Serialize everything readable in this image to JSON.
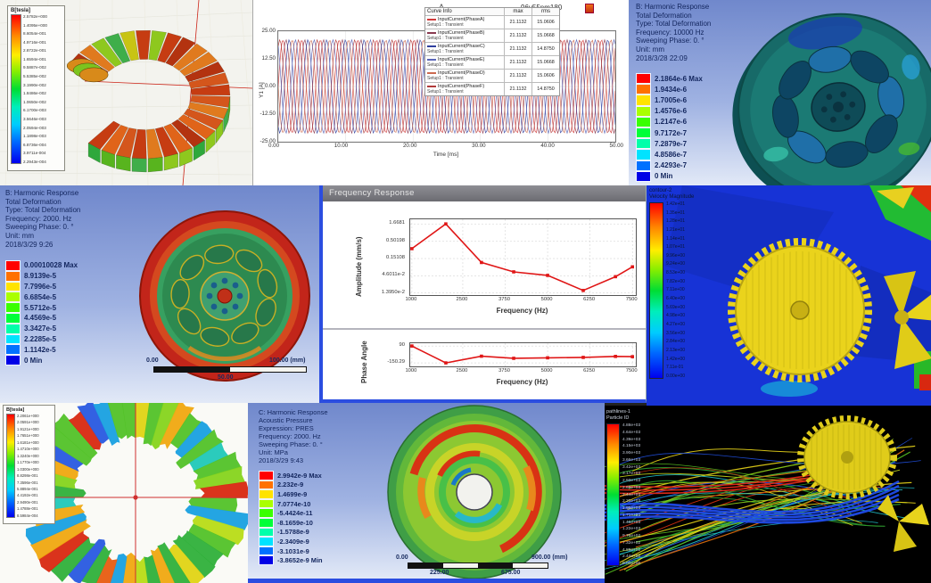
{
  "panels": {
    "maxwell_top": {
      "legend_title": "B[tesla]",
      "legend_values": [
        "2.5782e+000",
        "1.4095e+000",
        "8.6054e-001",
        "4.9716e-001",
        "2.8722e-001",
        "1.6594e-001",
        "9.5887e-002",
        "5.5385e-002",
        "3.1990e-002",
        "1.8486e-002",
        "1.0650e-002",
        "6.1700e-003",
        "3.5646e-003",
        "2.0594e-003",
        "1.1898e-003",
        "6.8736e-004",
        "3.9711e-004",
        "2.2943e-004"
      ]
    },
    "xy_plot": {
      "title": "A",
      "subtitle": "96v55nm180",
      "ylabel": "Y1 [A]",
      "xlabel": "Time [ms]",
      "yticks": [
        "25.00",
        "12.50",
        "0.00",
        "-12.50",
        "-25.00"
      ],
      "xticks": [
        "0.00",
        "10.00",
        "20.00",
        "30.00",
        "40.00",
        "50.00"
      ],
      "table": {
        "headers": [
          "Curve Info",
          "max",
          "rms"
        ],
        "rows": [
          {
            "label": "InputCurrent(PhaseA)",
            "setup": "Setup1 : Transient",
            "max": "21.1132",
            "rms": "15.0606",
            "color": "#d03a3a"
          },
          {
            "label": "InputCurrent(PhaseB)",
            "setup": "Setup1 : Transient",
            "max": "21.1132",
            "rms": "15.0668",
            "color": "#8a3a50"
          },
          {
            "label": "InputCurrent(PhaseC)",
            "setup": "Setup1 : Transient",
            "max": "21.1132",
            "rms": "14.8750",
            "color": "#2f3f9e"
          },
          {
            "label": "InputCurrent(PhaseE)",
            "setup": "Setup1 : Transient",
            "max": "21.1132",
            "rms": "15.0668",
            "color": "#5a66b8"
          },
          {
            "label": "InputCurrent(PhaseD)",
            "setup": "Setup1 : Transient",
            "max": "21.1132",
            "rms": "15.0606",
            "color": "#cc6a50"
          },
          {
            "label": "InputCurrent(PhaseF)",
            "setup": "Setup1 : Transient",
            "max": "21.1132",
            "rms": "14.8750",
            "color": "#b03a3a"
          }
        ]
      }
    },
    "harmonic_10000": {
      "info_lines": [
        "B: Harmonic Response",
        "Total Deformation",
        "Type: Total Deformation",
        "Frequency: 10000 Hz",
        "Sweeping Phase: 0. °",
        "Unit: mm",
        "2018/3/28 22:09"
      ],
      "legend": [
        "2.1864e-6 Max",
        "1.9434e-6",
        "1.7005e-6",
        "1.4576e-6",
        "1.2147e-6",
        "9.7172e-7",
        "7.2879e-7",
        "4.8586e-7",
        "2.4293e-7",
        "0 Min"
      ]
    },
    "harmonic_2000": {
      "info_lines": [
        "B: Harmonic Response",
        "Total Deformation",
        "Type: Total Deformation",
        "Frequency: 2000. Hz",
        "Sweeping Phase: 0. °",
        "Unit: mm",
        "2018/3/29 9:26"
      ],
      "legend": [
        "0.00010028 Max",
        "8.9139e-5",
        "7.7996e-5",
        "6.6854e-5",
        "5.5712e-5",
        "4.4569e-5",
        "3.3427e-5",
        "2.2285e-5",
        "1.1142e-5",
        "0 Min"
      ],
      "ruler": {
        "start": "0.00",
        "mid": "50.00",
        "end": "100.00 (mm)"
      }
    },
    "freq_response": {
      "window_title": "Frequency Response",
      "amp_ylabel": "Amplitude (mm/s)",
      "phase_ylabel": "Phase Angle",
      "xlabel_top": "Frequency (Hz)",
      "xlabel_bottom": "Frequency (Hz)",
      "amp_yticks": [
        "1.6681",
        "0.50198",
        "0.15108",
        "4.6011e-2",
        "1.3950e-2"
      ],
      "phase_yticks": [
        "90",
        "-150.29"
      ],
      "xticks": [
        "1000",
        "2500",
        "3750",
        "5000",
        "6250",
        "7500"
      ]
    },
    "cfd_contour": {
      "legend_title_1": "contour-2",
      "legend_title_2": "Velocity Magnitude",
      "legend_values": [
        "1.42e+01",
        "1.35e+01",
        "1.28e+01",
        "1.21e+01",
        "1.14e+01",
        "1.07e+01",
        "9.96e+00",
        "9.24e+00",
        "8.53e+00",
        "7.82e+00",
        "7.11e+00",
        "6.40e+00",
        "5.69e+00",
        "4.98e+00",
        "4.27e+00",
        "3.56e+00",
        "2.84e+00",
        "2.13e+00",
        "1.42e+00",
        "7.11e-01",
        "0.00e+00"
      ]
    },
    "maxwell_bottom": {
      "legend_title": "B[tesla]",
      "legend_values": [
        "2.2061e+000",
        "2.0591e+000",
        "1.9121e+000",
        "1.7651e+000",
        "1.6181e+000",
        "1.4710e+000",
        "1.3240e+000",
        "1.1770e+000",
        "1.0300e+000",
        "8.8298e-001",
        "7.3596e-001",
        "5.8894e-001",
        "4.4192e-001",
        "2.9490e-001",
        "1.4788e-001",
        "8.5984e-004"
      ]
    },
    "acoustic": {
      "info_lines": [
        "C: Harmonic Response",
        "Acoustic Pressure",
        "Expression: PRES",
        "Frequency: 2000. Hz",
        "Sweeping Phase: 0. °",
        "Unit: MPa",
        "2018/3/29 9:43"
      ],
      "legend": [
        "2.9942e-9 Max",
        "2.232e-9",
        "1.4699e-9",
        "7.0774e-10",
        "-5.4424e-11",
        "-8.1659e-10",
        "-1.5788e-9",
        "-2.3409e-9",
        "-3.1031e-9",
        "-3.8652e-9 Min"
      ],
      "ruler": {
        "start": "0.00",
        "q1": "225.00",
        "q3": "675.00",
        "end": "900.00 (mm)"
      }
    },
    "streamlines": {
      "legend_title_1": "pathlines-1",
      "legend_title_2": "Particle ID",
      "legend_values": [
        "4.88e+03",
        "4.64e+03",
        "4.39e+03",
        "4.15e+03",
        "3.90e+03",
        "3.66e+03",
        "3.42e+03",
        "3.17e+03",
        "2.93e+03",
        "2.69e+03",
        "2.44e+03",
        "2.20e+03",
        "1.95e+03",
        "1.71e+03",
        "1.46e+03",
        "1.22e+03",
        "9.76e+02",
        "7.32e+02",
        "4.88e+02",
        "2.44e+02",
        "0.00e+00"
      ]
    }
  },
  "chart_data": [
    {
      "type": "line",
      "name": "input-current-waveforms",
      "title": "A",
      "subtitle": "96v55nm180",
      "xlabel": "Time [ms]",
      "ylabel": "Y1 [A]",
      "xlim": [
        0,
        50
      ],
      "ylim": [
        -25,
        25
      ],
      "xticks": [
        0,
        10,
        20,
        30,
        40,
        50
      ],
      "yticks": [
        25,
        12.5,
        0,
        -12.5,
        -25
      ],
      "waveform": "sine",
      "amplitude": 21.1132,
      "period_ms": 2.78,
      "series": [
        {
          "name": "InputCurrent(PhaseA)",
          "phase_deg": 0,
          "color": "#d03a3a"
        },
        {
          "name": "InputCurrent(PhaseB)",
          "phase_deg": 300,
          "color": "#8a3a50"
        },
        {
          "name": "InputCurrent(PhaseC)",
          "phase_deg": 240,
          "color": "#2f3f9e"
        },
        {
          "name": "InputCurrent(PhaseD)",
          "phase_deg": 180,
          "color": "#cc6a50"
        },
        {
          "name": "InputCurrent(PhaseE)",
          "phase_deg": 120,
          "color": "#5a66b8"
        },
        {
          "name": "InputCurrent(PhaseF)",
          "phase_deg": 60,
          "color": "#b03a3a"
        }
      ]
    },
    {
      "type": "line",
      "name": "frequency-response-amplitude",
      "ylabel": "Amplitude (mm/s)",
      "xlabel": "Frequency (Hz)",
      "yscale": "log",
      "xlim": [
        950,
        7600
      ],
      "ylim": [
        0.012,
        2.3
      ],
      "xticks": [
        1000,
        2500,
        3750,
        5000,
        6250,
        7500
      ],
      "yticks": [
        1.6681,
        0.50198,
        0.15108,
        0.046011,
        0.01395
      ],
      "color": "#e01616",
      "x": [
        1000,
        2000,
        3050,
        4000,
        5000,
        6050,
        7000,
        7500
      ],
      "y": [
        0.3,
        1.6681,
        0.115,
        0.06,
        0.047,
        0.0165,
        0.043,
        0.085
      ]
    },
    {
      "type": "line",
      "name": "frequency-response-phase",
      "ylabel": "Phase Angle",
      "xlabel": "Frequency (Hz)",
      "xlim": [
        950,
        7600
      ],
      "ylim": [
        -200,
        130
      ],
      "xticks": [
        1000,
        2500,
        3750,
        5000,
        6250,
        7500
      ],
      "yticks": [
        90,
        -150.29
      ],
      "color": "#e01616",
      "x": [
        1000,
        2000,
        3050,
        4000,
        5000,
        6050,
        7000,
        7500
      ],
      "y": [
        90,
        -150.29,
        -55,
        -85,
        -78,
        -72,
        -58,
        -62
      ]
    }
  ]
}
